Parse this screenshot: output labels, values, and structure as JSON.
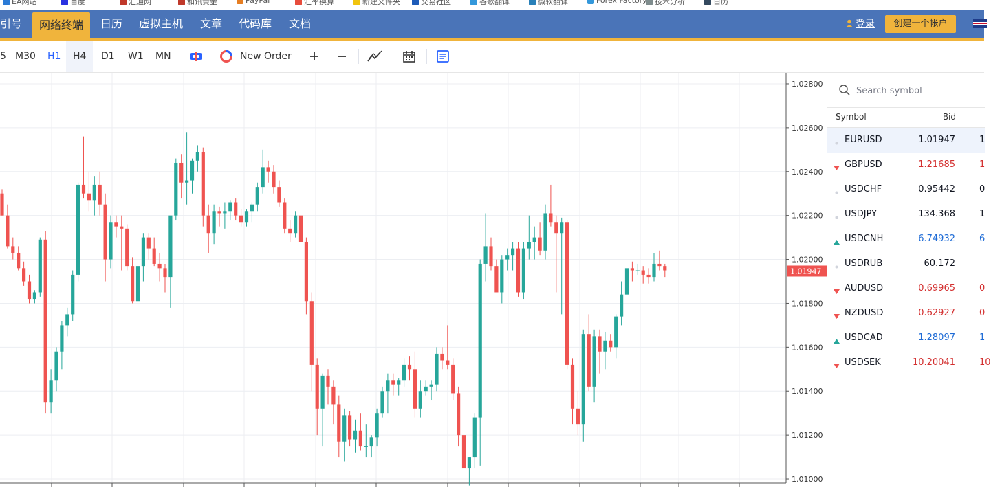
{
  "bookmarks": [
    {
      "label": "EA网站",
      "color": "#2b7bd6"
    },
    {
      "label": "百度",
      "color": "#2932e1"
    },
    {
      "label": "汇通网",
      "color": "#c0392b"
    },
    {
      "label": "和讯黄金",
      "color": "#c0392b"
    },
    {
      "label": "PayPal",
      "color": "#e67e22"
    },
    {
      "label": "汇率换算",
      "color": "#e74c3c"
    },
    {
      "label": "新建文件夹",
      "color": "#f1c40f"
    },
    {
      "label": "交易社区",
      "color": "#1e5bb8"
    },
    {
      "label": "谷歌翻译",
      "color": "#3498db"
    },
    {
      "label": "微软翻译",
      "color": "#2980b9"
    },
    {
      "label": "Forex Factory",
      "color": "#3498db"
    },
    {
      "label": "技术分析",
      "color": "#7f8c8d"
    },
    {
      "label": "日历",
      "color": "#34495e"
    }
  ],
  "nav": {
    "items": [
      "引号",
      "网络终端",
      "日历",
      "虚拟主机",
      "文章",
      "代码库",
      "文档"
    ],
    "active": "网络终端",
    "login": "登录",
    "create_account": "创建一个帐户"
  },
  "toolbar": {
    "timeframes": [
      "5",
      "M30",
      "H1",
      "H4",
      "D1",
      "W1",
      "MN"
    ],
    "active_timeframe": "H4",
    "highlight_timeframe": "H1",
    "new_order": "New Order"
  },
  "chart_data": {
    "type": "candlestick",
    "symbol": "EURUSD",
    "price_axis": [
      "1.02800",
      "1.02600",
      "1.02400",
      "1.02200",
      "1.02000",
      "1.01800",
      "1.01600",
      "1.01400",
      "1.01200",
      "1.01000"
    ],
    "ylim": [
      1.0095,
      1.0285
    ],
    "current_price": "1.01947",
    "up_color": "#26a69a",
    "down_color": "#ef5350",
    "candles": [
      [
        1.023,
        1.0232,
        1.022,
        1.022
      ],
      [
        1.022,
        1.0225,
        1.0205,
        1.0206
      ],
      [
        1.0206,
        1.021,
        1.02,
        1.0203
      ],
      [
        1.0203,
        1.0206,
        1.0195,
        1.0196
      ],
      [
        1.0196,
        1.0199,
        1.0188,
        1.019
      ],
      [
        1.019,
        1.0193,
        1.018,
        1.0182
      ],
      [
        1.0182,
        1.0186,
        1.018,
        1.0185
      ],
      [
        1.0185,
        1.021,
        1.0183,
        1.0209
      ],
      [
        1.0209,
        1.0213,
        1.013,
        1.0135
      ],
      [
        1.0135,
        1.015,
        1.013,
        1.0145
      ],
      [
        1.0145,
        1.016,
        1.014,
        1.0158
      ],
      [
        1.0158,
        1.0172,
        1.015,
        1.017
      ],
      [
        1.017,
        1.0178,
        1.0165,
        1.0175
      ],
      [
        1.0175,
        1.0195,
        1.0172,
        1.0193
      ],
      [
        1.0193,
        1.0235,
        1.019,
        1.0234
      ],
      [
        1.0234,
        1.0256,
        1.0228,
        1.023
      ],
      [
        1.023,
        1.024,
        1.0222,
        1.0227
      ],
      [
        1.0227,
        1.0238,
        1.022,
        1.0234
      ],
      [
        1.0234,
        1.024,
        1.022,
        1.0225
      ],
      [
        1.0225,
        1.023,
        1.019,
        1.02
      ],
      [
        1.02,
        1.022,
        1.0196,
        1.0217
      ],
      [
        1.0217,
        1.022,
        1.021,
        1.0215
      ],
      [
        1.0215,
        1.022,
        1.0195,
        1.0214
      ],
      [
        1.0214,
        1.0216,
        1.0195,
        1.0197
      ],
      [
        1.0197,
        1.0201,
        1.018,
        1.0181
      ],
      [
        1.0181,
        1.0198,
        1.018,
        1.0197
      ],
      [
        1.0197,
        1.0212,
        1.019,
        1.021
      ],
      [
        1.021,
        1.0212,
        1.02,
        1.0205
      ],
      [
        1.0205,
        1.021,
        1.0197,
        1.0198
      ],
      [
        1.0198,
        1.0203,
        1.019,
        1.0196
      ],
      [
        1.0196,
        1.0198,
        1.0185,
        1.0192
      ],
      [
        1.0192,
        1.0219,
        1.0178,
        1.022
      ],
      [
        1.022,
        1.0246,
        1.0218,
        1.0244
      ],
      [
        1.0244,
        1.0248,
        1.0228,
        1.0235
      ],
      [
        1.0235,
        1.0258,
        1.0225,
        1.0236
      ],
      [
        1.0236,
        1.0246,
        1.023,
        1.0245
      ],
      [
        1.0245,
        1.0252,
        1.024,
        1.0249
      ],
      [
        1.0249,
        1.0251,
        1.0215,
        1.022
      ],
      [
        1.022,
        1.0225,
        1.0203,
        1.0212
      ],
      [
        1.0212,
        1.0225,
        1.0207,
        1.0222
      ],
      [
        1.0222,
        1.0224,
        1.0215,
        1.0221
      ],
      [
        1.0221,
        1.0226,
        1.0214,
        1.0222
      ],
      [
        1.0222,
        1.0227,
        1.0218,
        1.0226
      ],
      [
        1.0226,
        1.0228,
        1.0218,
        1.022
      ],
      [
        1.022,
        1.0223,
        1.0215,
        1.0217
      ],
      [
        1.0217,
        1.0223,
        1.0215,
        1.0222
      ],
      [
        1.0222,
        1.0226,
        1.0217,
        1.0225
      ],
      [
        1.0225,
        1.0235,
        1.0222,
        1.0233
      ],
      [
        1.0233,
        1.025,
        1.023,
        1.0242
      ],
      [
        1.0242,
        1.0245,
        1.0235,
        1.024
      ],
      [
        1.024,
        1.0243,
        1.023,
        1.0233
      ],
      [
        1.0233,
        1.0236,
        1.0224,
        1.0226
      ],
      [
        1.0226,
        1.0228,
        1.0212,
        1.0214
      ],
      [
        1.0214,
        1.0218,
        1.0208,
        1.0212
      ],
      [
        1.0212,
        1.0222,
        1.021,
        1.022
      ],
      [
        1.022,
        1.0223,
        1.0205,
        1.0208
      ],
      [
        1.0208,
        1.021,
        1.0175,
        1.0181
      ],
      [
        1.0181,
        1.0185,
        1.014,
        1.0152
      ],
      [
        1.0152,
        1.0155,
        1.012,
        1.0132
      ],
      [
        1.0132,
        1.0148,
        1.0115,
        1.0147
      ],
      [
        1.0147,
        1.015,
        1.0134,
        1.0142
      ],
      [
        1.0142,
        1.0145,
        1.0125,
        1.0134
      ],
      [
        1.0134,
        1.0138,
        1.011,
        1.0117
      ],
      [
        1.0117,
        1.0132,
        1.0108,
        1.0129
      ],
      [
        1.0129,
        1.0131,
        1.0115,
        1.0118
      ],
      [
        1.0118,
        1.0127,
        1.0112,
        1.0122
      ],
      [
        1.0122,
        1.013,
        1.0113,
        1.0115
      ],
      [
        1.0115,
        1.0125,
        1.011,
        1.0115
      ],
      [
        1.0115,
        1.012,
        1.011,
        1.0119
      ],
      [
        1.0119,
        1.0132,
        1.0115,
        1.013
      ],
      [
        1.013,
        1.0142,
        1.0128,
        1.014
      ],
      [
        1.014,
        1.0148,
        1.013,
        1.0145
      ],
      [
        1.0145,
        1.0148,
        1.0138,
        1.0143
      ],
      [
        1.0143,
        1.0146,
        1.0138,
        1.0145
      ],
      [
        1.0145,
        1.0155,
        1.0142,
        1.0152
      ],
      [
        1.0152,
        1.0156,
        1.0145,
        1.015
      ],
      [
        1.015,
        1.0158,
        1.0128,
        1.0132
      ],
      [
        1.0132,
        1.0145,
        1.0128,
        1.014
      ],
      [
        1.014,
        1.0145,
        1.0138,
        1.0142
      ],
      [
        1.0142,
        1.0145,
        1.0136,
        1.0143
      ],
      [
        1.0143,
        1.016,
        1.014,
        1.0157
      ],
      [
        1.0157,
        1.016,
        1.015,
        1.0154
      ],
      [
        1.0154,
        1.017,
        1.015,
        1.0152
      ],
      [
        1.0152,
        1.0155,
        1.0136,
        1.0139
      ],
      [
        1.0139,
        1.0142,
        1.0115,
        1.012
      ],
      [
        1.012,
        1.0125,
        1.0105,
        1.0105
      ],
      [
        1.0105,
        1.011,
        1.0097,
        1.011
      ],
      [
        1.011,
        1.013,
        1.0105,
        1.0128
      ],
      [
        1.0128,
        1.02,
        1.0106,
        1.0198
      ],
      [
        1.0198,
        1.0221,
        1.019,
        1.0206
      ],
      [
        1.0206,
        1.021,
        1.0195,
        1.0197
      ],
      [
        1.0197,
        1.02,
        1.0185,
        1.0185
      ],
      [
        1.0185,
        1.0202,
        1.018,
        1.02
      ],
      [
        1.02,
        1.0205,
        1.0195,
        1.0202
      ],
      [
        1.0202,
        1.0208,
        1.0195,
        1.0205
      ],
      [
        1.0205,
        1.0208,
        1.0183,
        1.0185
      ],
      [
        1.0185,
        1.0208,
        1.0182,
        1.0205
      ],
      [
        1.0205,
        1.022,
        1.02,
        1.0208
      ],
      [
        1.0208,
        1.0215,
        1.02,
        1.021
      ],
      [
        1.021,
        1.0217,
        1.0202,
        1.0204
      ],
      [
        1.0204,
        1.0225,
        1.02,
        1.0221
      ],
      [
        1.0221,
        1.0234,
        1.0215,
        1.0217
      ],
      [
        1.0217,
        1.022,
        1.0185,
        1.0212
      ],
      [
        1.0212,
        1.0219,
        1.0175,
        1.0217
      ],
      [
        1.0217,
        1.0218,
        1.015,
        1.0152
      ],
      [
        1.0152,
        1.0155,
        1.0125,
        1.0132
      ],
      [
        1.0132,
        1.014,
        1.012,
        1.0125
      ],
      [
        1.0125,
        1.0168,
        1.0117,
        1.0166
      ],
      [
        1.0166,
        1.0175,
        1.014,
        1.0142
      ],
      [
        1.0142,
        1.0168,
        1.0135,
        1.0165
      ],
      [
        1.0165,
        1.0168,
        1.0148,
        1.0158
      ],
      [
        1.0158,
        1.0167,
        1.015,
        1.0163
      ],
      [
        1.0163,
        1.0166,
        1.0158,
        1.016
      ],
      [
        1.016,
        1.0175,
        1.0155,
        1.0174
      ],
      [
        1.0174,
        1.019,
        1.017,
        1.0184
      ],
      [
        1.0184,
        1.02,
        1.018,
        1.0196
      ],
      [
        1.0196,
        1.0199,
        1.019,
        1.0195
      ],
      [
        1.0195,
        1.0198,
        1.0193,
        1.0195
      ],
      [
        1.0195,
        1.0197,
        1.0189,
        1.0193
      ],
      [
        1.0193,
        1.0196,
        1.0189,
        1.0192
      ],
      [
        1.0192,
        1.0203,
        1.019,
        1.0198
      ],
      [
        1.0198,
        1.0204,
        1.0195,
        1.0197
      ],
      [
        1.0197,
        1.0198,
        1.0192,
        1.0195
      ]
    ]
  },
  "watchlist": {
    "search_placeholder": "Search symbol",
    "headers": {
      "symbol": "Symbol",
      "bid": "Bid"
    },
    "rows": [
      {
        "symbol": "EURUSD",
        "bid": "1.01947",
        "ask": "1",
        "dir": "none",
        "color": "#131722",
        "highlight": true
      },
      {
        "symbol": "GBPUSD",
        "bid": "1.21685",
        "ask": "1",
        "dir": "down",
        "color": "#d32f2f"
      },
      {
        "symbol": "USDCHF",
        "bid": "0.95442",
        "ask": "0",
        "dir": "none",
        "color": "#131722"
      },
      {
        "symbol": "USDJPY",
        "bid": "134.368",
        "ask": "1",
        "dir": "none",
        "color": "#131722"
      },
      {
        "symbol": "USDCNH",
        "bid": "6.74932",
        "ask": "6",
        "dir": "up",
        "color": "#1e6bd6"
      },
      {
        "symbol": "USDRUB",
        "bid": "60.172",
        "ask": "",
        "dir": "none",
        "color": "#131722"
      },
      {
        "symbol": "AUDUSD",
        "bid": "0.69965",
        "ask": "0",
        "dir": "down",
        "color": "#d32f2f"
      },
      {
        "symbol": "NZDUSD",
        "bid": "0.62927",
        "ask": "0",
        "dir": "down",
        "color": "#d32f2f"
      },
      {
        "symbol": "USDCAD",
        "bid": "1.28097",
        "ask": "1",
        "dir": "up",
        "color": "#1e6bd6"
      },
      {
        "symbol": "USDSEK",
        "bid": "10.20041",
        "ask": "10",
        "dir": "down",
        "color": "#d32f2f"
      }
    ]
  }
}
